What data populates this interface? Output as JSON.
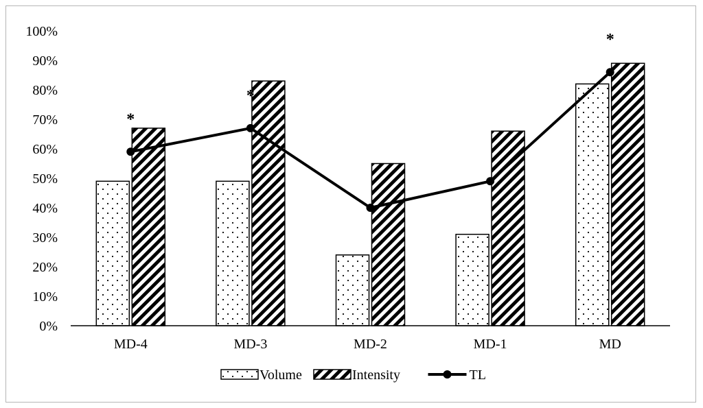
{
  "chart_data": {
    "type": "bar",
    "categories": [
      "MD-4",
      "MD-3",
      "MD-2",
      "MD-1",
      "MD"
    ],
    "series": [
      {
        "name": "Volume",
        "kind": "bar",
        "pattern": "dots",
        "values": [
          49,
          49,
          24,
          31,
          82
        ]
      },
      {
        "name": "Intensity",
        "kind": "bar",
        "pattern": "diagonal-stripes",
        "values": [
          67,
          83,
          55,
          66,
          89
        ]
      },
      {
        "name": "TL",
        "kind": "line",
        "marker": "circle",
        "values": [
          59,
          67,
          40,
          49,
          86
        ]
      }
    ],
    "significance": [
      "*",
      "*",
      "",
      "",
      "*"
    ],
    "y_ticks": [
      "0%",
      "10%",
      "20%",
      "30%",
      "40%",
      "50%",
      "60%",
      "70%",
      "80%",
      "90%",
      "100%"
    ],
    "ylim": [
      0,
      100
    ],
    "grid": false,
    "legend_position": "bottom",
    "colors": {
      "bar_fill": "#ffffff",
      "bar_stroke": "#000000",
      "line": "#000000"
    }
  }
}
